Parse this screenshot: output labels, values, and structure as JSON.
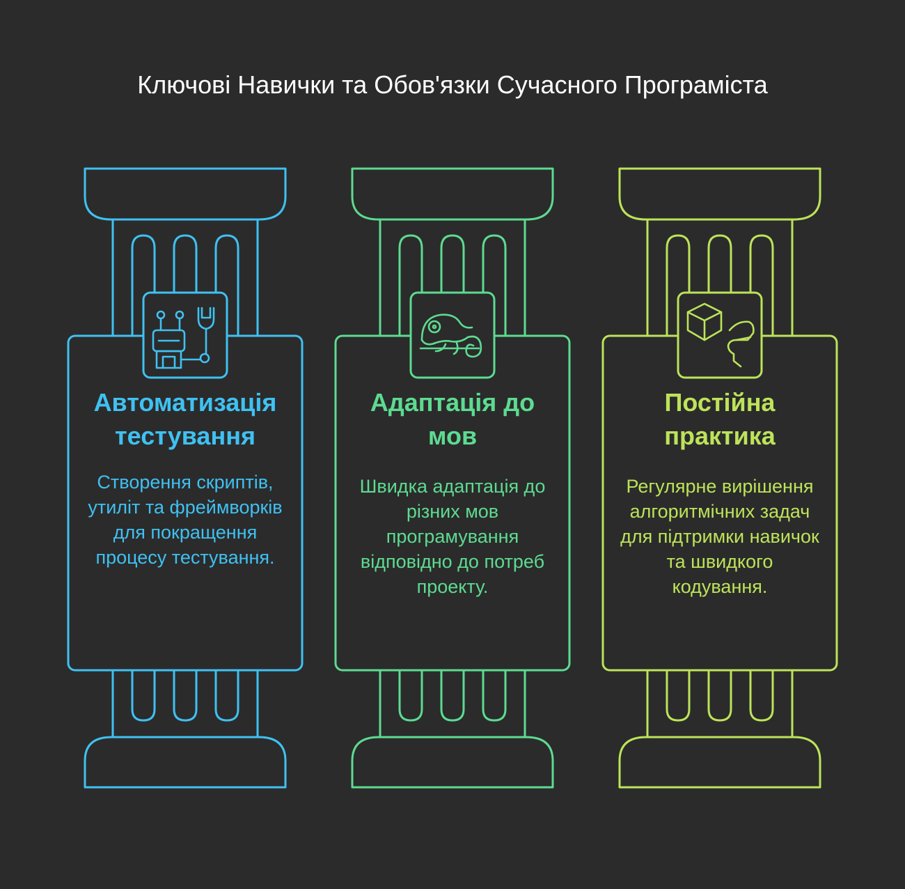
{
  "title": "Ключові Навички та Обов'язки Сучасного Програміста",
  "pillars": [
    {
      "heading": "Автоматизація тестування",
      "description": "Створення скриптів, утиліт та фреймворків для покращення процесу тестування.",
      "icon": "robot-wrench-icon",
      "color": "#3fc1f2"
    },
    {
      "heading": "Адаптація до мов",
      "description": "Швидка адаптація до різних мов програмування відповідно до потреб проекту.",
      "icon": "chameleon-icon",
      "color": "#5ddb91"
    },
    {
      "heading": "Постійна практика",
      "description": "Регулярне вирішення алгоритмічних задач для підтримки навичок та швидкого кодування.",
      "icon": "cube-head-icon",
      "color": "#bde35a"
    }
  ]
}
